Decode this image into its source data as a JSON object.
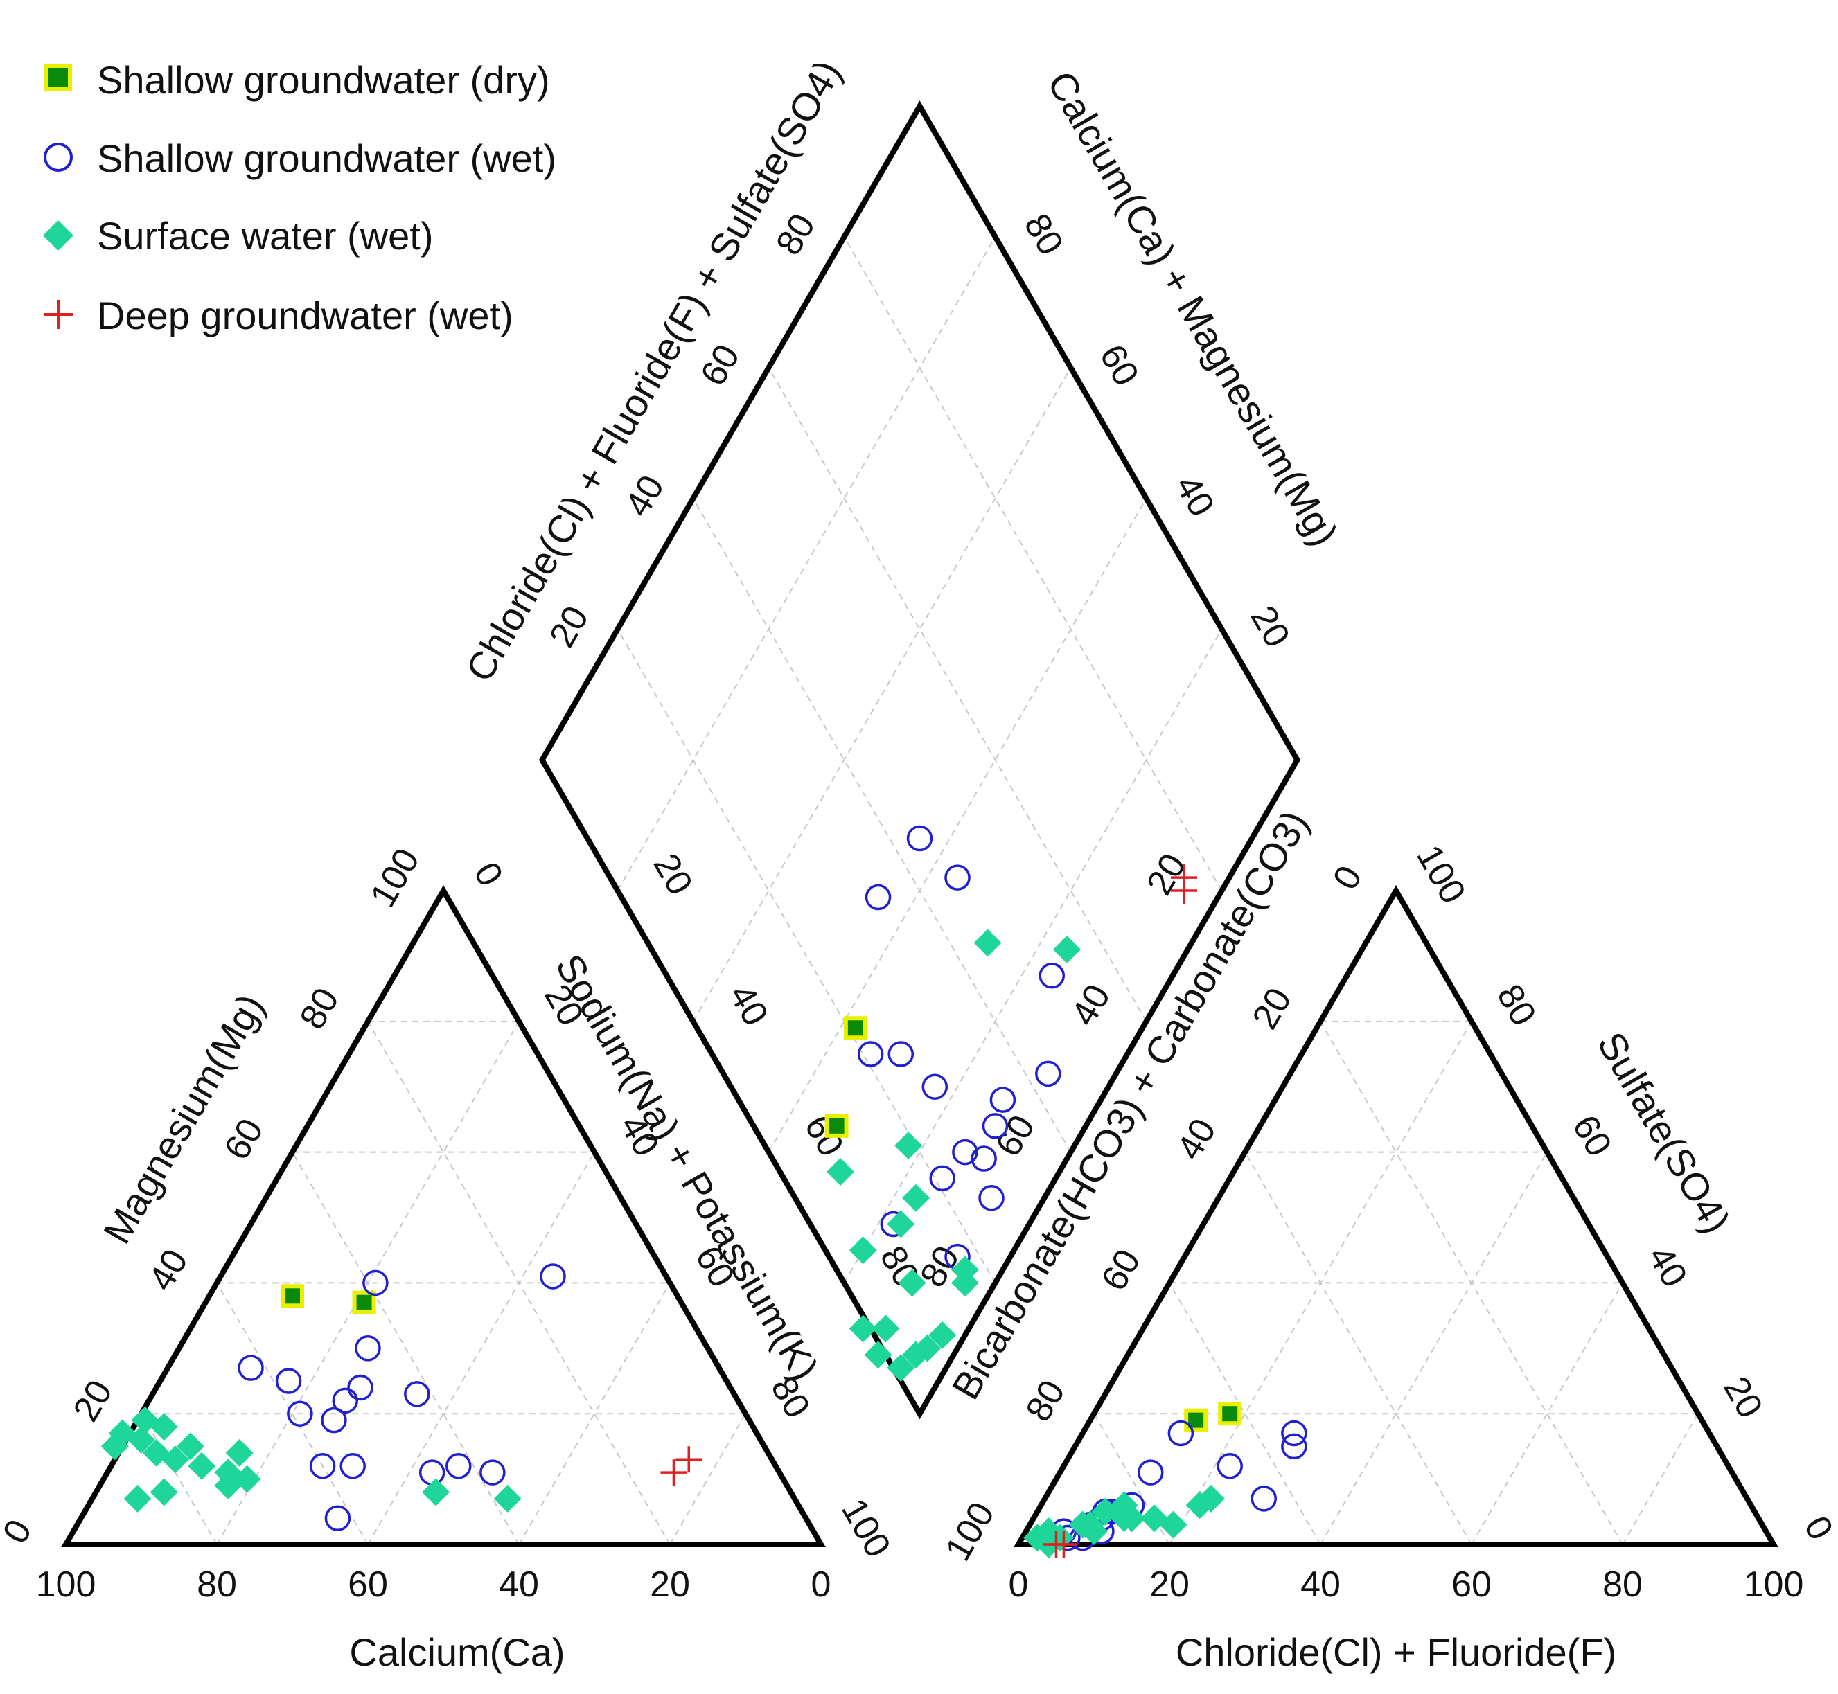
{
  "chart_data": {
    "type": "piper",
    "legend": {
      "placement": "top-left",
      "entries": [
        {
          "key": "dry",
          "label": "Shallow groundwater (dry)",
          "marker": "square",
          "fill": "#0a8a0a",
          "stroke": "#e8f000"
        },
        {
          "key": "sw",
          "label": "Shallow groundwater (wet)",
          "marker": "circle-open",
          "fill": "none",
          "stroke": "#2020d0"
        },
        {
          "key": "surf",
          "label": "Surface water (wet)",
          "marker": "diamond",
          "fill": "#1fd69a",
          "stroke": "#1fd69a"
        },
        {
          "key": "deep",
          "label": "Deep groundwater (wet)",
          "marker": "plus",
          "fill": "none",
          "stroke": "#e02020"
        }
      ]
    },
    "cation_triangle": {
      "bottom_label": "Calcium(Ca)",
      "left_label": "Magnesium(Mg)",
      "right_label": "Sodium(Na) + Potassium(K)",
      "bottom_ticks": [
        "100",
        "80",
        "60",
        "40",
        "20",
        "0"
      ],
      "left_ticks": [
        "0",
        "20",
        "40",
        "60",
        "80",
        "100"
      ],
      "right_ticks": [
        "0",
        "20",
        "40",
        "60",
        "80",
        "100"
      ]
    },
    "anion_triangle": {
      "bottom_label": "Chloride(Cl) + Fluoride(F)",
      "left_label": "Bicarbonate(HCO3) + Carbonate(CO3)",
      "right_label": "Sulfate(SO4)",
      "bottom_ticks": [
        "0",
        "20",
        "40",
        "60",
        "80",
        "100"
      ],
      "left_ticks": [
        "100",
        "80",
        "60",
        "40",
        "20",
        "0"
      ],
      "right_ticks": [
        "0",
        "20",
        "40",
        "60",
        "80",
        "100"
      ]
    },
    "diamond": {
      "upper_left_label": "Chloride(Cl) + Fluoride(F) + Sulfate(SO4)",
      "upper_right_label": "Calcium(Ca) + Magnesium(Mg)",
      "upper_left_ticks": [
        "20",
        "40",
        "60",
        "80"
      ],
      "upper_right_ticks": [
        "20",
        "40",
        "60",
        "80"
      ],
      "lower_left_ticks": [
        "20",
        "40",
        "60",
        "80"
      ],
      "lower_right_ticks": [
        "20",
        "40",
        "60",
        "80"
      ]
    },
    "samples": [
      {
        "group": "dry",
        "ca": 51,
        "mg": 38,
        "cl": 14,
        "so4": 19
      },
      {
        "group": "dry",
        "ca": 42,
        "mg": 37,
        "cl": 18,
        "so4": 20
      },
      {
        "group": "sw",
        "ca": 39,
        "mg": 40,
        "cl": 22,
        "so4": 12
      },
      {
        "group": "sw",
        "ca": 15,
        "mg": 41,
        "cl": 29,
        "so4": 15
      },
      {
        "group": "sw",
        "ca": 45,
        "mg": 30,
        "cl": 13,
        "so4": 17
      },
      {
        "group": "sw",
        "ca": 42,
        "mg": 23,
        "cl": 9,
        "so4": 4
      },
      {
        "group": "sw",
        "ca": 59,
        "mg": 20,
        "cl": 10,
        "so4": 5
      },
      {
        "group": "sw",
        "ca": 55,
        "mg": 19,
        "cl": 9,
        "so4": 5
      },
      {
        "group": "sw",
        "ca": 62,
        "mg": 27,
        "cl": 12,
        "so4": 6
      },
      {
        "group": "sw",
        "ca": 56,
        "mg": 12,
        "cl": 10,
        "so4": 2
      },
      {
        "group": "sw",
        "ca": 60,
        "mg": 12,
        "cl": 8,
        "so4": 3
      },
      {
        "group": "sw",
        "ca": 46,
        "mg": 11,
        "cl": 8,
        "so4": 1
      },
      {
        "group": "sw",
        "ca": 62,
        "mg": 4,
        "cl": 28,
        "so4": 17
      },
      {
        "group": "sw",
        "ca": 42,
        "mg": 12,
        "cl": 29,
        "so4": 7
      },
      {
        "group": "sw",
        "ca": 49,
        "mg": 24,
        "cl": 12,
        "so4": 11
      },
      {
        "group": "sw",
        "ca": 38,
        "mg": 11,
        "cl": 11,
        "so4": 5
      },
      {
        "group": "sw",
        "ca": 52,
        "mg": 22,
        "cl": 5,
        "so4": 2
      },
      {
        "group": "sw",
        "ca": 58,
        "mg": 25,
        "cl": 6,
        "so4": 1
      },
      {
        "group": "surf",
        "ca": 80,
        "mg": 19,
        "cl": 5,
        "so4": 1
      },
      {
        "group": "surf",
        "ca": 78,
        "mg": 18,
        "cl": 3,
        "so4": 2
      },
      {
        "group": "surf",
        "ca": 84,
        "mg": 17,
        "cl": 7,
        "so4": 3
      },
      {
        "group": "surf",
        "ca": 82,
        "mg": 16,
        "cl": 8,
        "so4": 3
      },
      {
        "group": "surf",
        "ca": 86,
        "mg": 15,
        "cl": 9,
        "so4": 5
      },
      {
        "group": "surf",
        "ca": 81,
        "mg": 14,
        "cl": 16,
        "so4": 4
      },
      {
        "group": "surf",
        "ca": 79,
        "mg": 13,
        "cl": 22,
        "so4": 7
      },
      {
        "group": "surf",
        "ca": 76,
        "mg": 12,
        "cl": 11,
        "so4": 6
      },
      {
        "group": "surf",
        "ca": 73,
        "mg": 11,
        "cl": 13,
        "so4": 4
      },
      {
        "group": "surf",
        "ca": 71,
        "mg": 10,
        "cl": 19,
        "so4": 3
      },
      {
        "group": "surf",
        "ca": 74,
        "mg": 9,
        "cl": 4,
        "so4": 1
      },
      {
        "group": "surf",
        "ca": 83,
        "mg": 8,
        "cl": 9,
        "so4": 2
      },
      {
        "group": "surf",
        "ca": 87,
        "mg": 7,
        "cl": 3,
        "so4": 1
      },
      {
        "group": "surf",
        "ca": 47,
        "mg": 8,
        "cl": 21,
        "so4": 6
      },
      {
        "group": "surf",
        "ca": 38,
        "mg": 7,
        "cl": 12,
        "so4": 4
      },
      {
        "group": "surf",
        "ca": 70,
        "mg": 14,
        "cl": 4,
        "so4": 0
      },
      {
        "group": "surf",
        "ca": 76,
        "mg": 15,
        "cl": 2,
        "so4": 1
      },
      {
        "group": "deep",
        "ca": 11,
        "mg": 13,
        "cl": 6,
        "so4": 0
      },
      {
        "group": "deep",
        "ca": 14,
        "mg": 11,
        "cl": 5,
        "so4": 0
      }
    ]
  }
}
